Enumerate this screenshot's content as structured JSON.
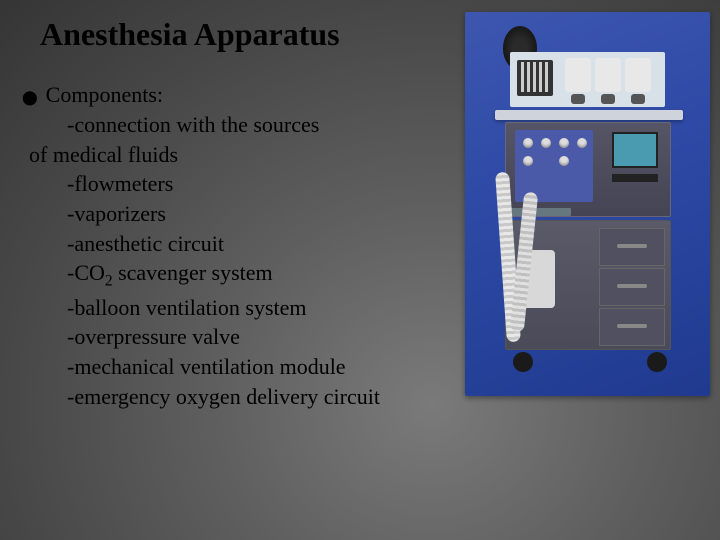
{
  "title": "Anesthesia Apparatus",
  "heading": "Components:",
  "items": [
    "-connection with the sources",
    "of medical fluids",
    "-flowmeters",
    "-vaporizers",
    "-anesthetic circuit",
    "-CO",
    " scavenger system",
    "-balloon ventilation system",
    "-overpressure valve",
    "-mechanical ventilation module",
    "-emergency oxygen delivery circuit"
  ],
  "co2_sub": "2",
  "colors": {
    "text": "#000000",
    "photo_bg": "#2e4aa6"
  }
}
